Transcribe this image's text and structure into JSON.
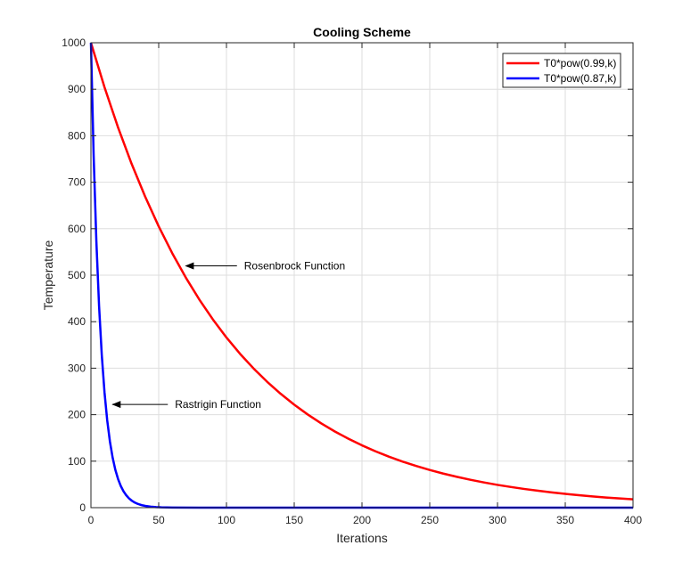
{
  "chart_data": {
    "type": "line",
    "title": "Cooling Scheme",
    "xlabel": "Iterations",
    "ylabel": "Temperature",
    "xlim": [
      0,
      400
    ],
    "ylim": [
      0,
      1000
    ],
    "xticks": [
      0,
      50,
      100,
      150,
      200,
      250,
      300,
      350,
      400
    ],
    "yticks": [
      0,
      100,
      200,
      300,
      400,
      500,
      600,
      700,
      800,
      900,
      1000
    ],
    "grid": true,
    "legend_position": "top-right",
    "series": [
      {
        "name": "T0*pow(0.99,k)",
        "color": "#ff0000",
        "x": [
          0,
          10,
          20,
          30,
          40,
          50,
          60,
          70,
          80,
          90,
          100,
          110,
          120,
          130,
          140,
          150,
          160,
          170,
          180,
          190,
          200,
          210,
          220,
          230,
          240,
          250,
          260,
          270,
          280,
          290,
          300,
          310,
          320,
          330,
          340,
          350,
          360,
          370,
          380,
          390,
          400
        ],
        "y": [
          1000,
          904.4,
          817.9,
          739.7,
          669.0,
          605.0,
          547.2,
          494.9,
          447.5,
          404.8,
          366.0,
          331.0,
          299.4,
          270.8,
          244.9,
          221.5,
          200.3,
          181.1,
          163.8,
          148.2,
          134.0,
          121.2,
          109.6,
          99.1,
          89.6,
          81.1,
          73.3,
          66.3,
          60.0,
          54.2,
          49.0,
          44.4,
          40.1,
          36.3,
          32.8,
          29.7,
          26.8,
          24.3,
          21.9,
          19.8,
          18.0
        ]
      },
      {
        "name": "T0*pow(0.87,k)",
        "color": "#0000ff",
        "x": [
          0,
          2,
          4,
          6,
          8,
          10,
          12,
          14,
          16,
          18,
          20,
          22,
          24,
          26,
          28,
          30,
          32,
          34,
          36,
          38,
          40,
          44,
          48,
          52,
          60,
          80,
          120,
          200,
          300,
          400
        ],
        "y": [
          1000,
          756.9,
          572.9,
          433.6,
          328.2,
          248.4,
          188.0,
          142.3,
          107.7,
          81.5,
          61.7,
          46.7,
          35.4,
          26.8,
          20.3,
          15.3,
          11.6,
          8.8,
          6.7,
          5.0,
          3.8,
          2.2,
          1.3,
          0.7,
          0.2,
          0.0,
          0.0,
          0.0,
          0.0,
          0.0
        ]
      }
    ],
    "annotations": [
      {
        "text": "Rosenbrock Function",
        "text_x": 113,
        "text_y": 520,
        "arrow_x": 70,
        "arrow_y": 520
      },
      {
        "text": "Rastrigin Function",
        "text_x": 62,
        "text_y": 222,
        "arrow_x": 16,
        "arrow_y": 222
      }
    ]
  }
}
